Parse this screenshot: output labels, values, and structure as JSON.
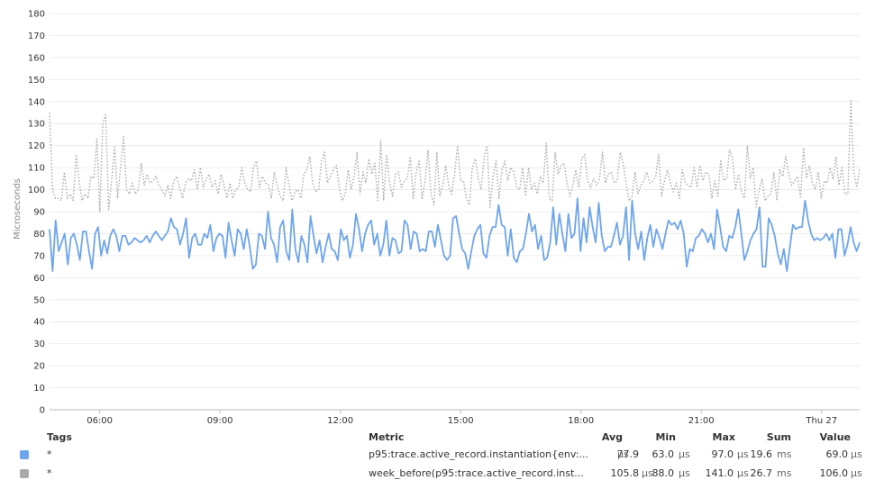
{
  "chart_data": {
    "type": "line",
    "ylabel": "Microseconds",
    "ylim": [
      0,
      180
    ],
    "yticks": [
      0,
      10,
      20,
      30,
      40,
      50,
      60,
      70,
      80,
      90,
      100,
      110,
      120,
      130,
      140,
      150,
      160,
      170,
      180
    ],
    "xtick_labels": [
      "06:00",
      "09:00",
      "12:00",
      "15:00",
      "18:00",
      "21:00",
      "Thu 27"
    ],
    "xtick_hours": [
      6,
      9,
      12,
      15,
      18,
      21,
      24
    ],
    "x_range_hours": [
      4.75,
      24.95
    ],
    "grid": true,
    "series": [
      {
        "name": "p95:trace.active_record.instantiation{env:...",
        "color": "#6ea5ec",
        "style": "solid",
        "values": [
          82,
          63,
          86,
          72,
          76,
          80,
          66,
          78,
          80,
          75,
          68,
          81,
          81,
          72,
          64,
          80,
          83,
          70,
          77,
          71,
          79,
          82,
          79,
          72,
          79,
          79,
          75,
          76,
          78,
          77,
          76,
          77,
          79,
          76,
          79,
          81,
          79,
          77,
          79,
          81,
          87,
          83,
          82,
          75,
          80,
          87,
          69,
          78,
          80,
          75,
          75,
          80,
          78,
          84,
          72,
          78,
          80,
          79,
          69,
          85,
          77,
          70,
          82,
          80,
          73,
          82,
          74,
          64,
          66,
          80,
          79,
          73,
          90,
          78,
          75,
          67,
          83,
          86,
          72,
          68,
          91,
          73,
          67,
          79,
          75,
          67,
          88,
          79,
          71,
          77,
          67,
          74,
          80,
          73,
          72,
          68,
          82,
          77,
          79,
          69,
          75,
          89,
          82,
          72,
          80,
          84,
          86,
          75,
          80,
          70,
          75,
          86,
          70,
          78,
          77,
          71,
          72,
          86,
          84,
          73,
          81,
          80,
          72,
          73,
          72,
          81,
          81,
          74,
          84,
          77,
          70,
          68,
          70,
          87,
          88,
          80,
          73,
          71,
          64,
          72,
          79,
          82,
          84,
          71,
          69,
          79,
          83,
          83,
          93,
          84,
          83,
          70,
          82,
          69,
          67,
          72,
          73,
          80,
          89,
          81,
          84,
          73,
          79,
          68,
          69,
          76,
          92,
          75,
          89,
          80,
          72,
          89,
          78,
          80,
          96,
          72,
          87,
          76,
          92,
          83,
          76,
          94,
          79,
          72,
          74,
          74,
          79,
          85,
          75,
          79,
          92,
          68,
          95,
          80,
          73,
          81,
          68,
          78,
          84,
          74,
          82,
          78,
          73,
          80,
          86,
          84,
          85,
          82,
          86,
          80,
          65,
          73,
          72,
          78,
          79,
          82,
          80,
          76,
          80,
          73,
          91,
          83,
          74,
          72,
          79,
          78,
          83,
          91,
          80,
          68,
          72,
          77,
          80,
          82,
          92,
          65,
          65,
          87,
          84,
          79,
          71,
          66,
          73,
          63,
          74,
          84,
          82,
          83,
          83,
          95,
          86,
          80,
          77,
          78,
          77,
          78,
          80,
          77,
          80,
          69,
          82,
          82,
          70,
          75,
          83,
          76,
          72,
          76
        ],
        "avg": "77.9",
        "min": "63.0",
        "max": "97.0",
        "sum": "19.6",
        "value": "69.0",
        "avg_unit": "μs",
        "min_unit": "μs",
        "max_unit": "μs",
        "sum_unit": "ms",
        "value_unit": "μs"
      },
      {
        "name": "week_before(p95:trace.active_record.inst...",
        "color": "#aaaaaa",
        "style": "dotted",
        "values": [
          135,
          100,
          96,
          96,
          95,
          108,
          96,
          98,
          95,
          116,
          104,
          95,
          98,
          96,
          106,
          105,
          123,
          90,
          130,
          134,
          91,
          104,
          120,
          96,
          110,
          124,
          100,
          98,
          103,
          98,
          100,
          112,
          102,
          107,
          103,
          104,
          106,
          102,
          100,
          97,
          102,
          96,
          104,
          106,
          101,
          96,
          103,
          105,
          104,
          109,
          100,
          110,
          101,
          105,
          107,
          101,
          104,
          98,
          107,
          102,
          96,
          103,
          96,
          100,
          101,
          110,
          103,
          100,
          99,
          110,
          113,
          101,
          106,
          103,
          102,
          96,
          108,
          102,
          97,
          95,
          110,
          102,
          95,
          99,
          100,
          96,
          107,
          109,
          115,
          103,
          99,
          100,
          113,
          117,
          103,
          106,
          109,
          111,
          101,
          95,
          98,
          109,
          100,
          106,
          117,
          98,
          108,
          103,
          114,
          107,
          112,
          95,
          122,
          95,
          116,
          103,
          97,
          107,
          108,
          101,
          104,
          105,
          115,
          96,
          108,
          113,
          96,
          104,
          118,
          98,
          93,
          117,
          97,
          102,
          111,
          102,
          98,
          107,
          120,
          104,
          104,
          96,
          93,
          110,
          114,
          105,
          100,
          115,
          120,
          92,
          106,
          113,
          96,
          109,
          113,
          104,
          110,
          108,
          101,
          100,
          110,
          97,
          110,
          100,
          103,
          98,
          106,
          103,
          121,
          96,
          95,
          117,
          107,
          111,
          112,
          103,
          97,
          102,
          109,
          101,
          114,
          116,
          104,
          101,
          105,
          102,
          105,
          117,
          103,
          107,
          108,
          103,
          104,
          117,
          112,
          103,
          95,
          97,
          108,
          98,
          102,
          104,
          108,
          103,
          104,
          106,
          116,
          97,
          104,
          109,
          103,
          99,
          103,
          96,
          109,
          103,
          102,
          101,
          110,
          101,
          111,
          104,
          108,
          107,
          96,
          104,
          97,
          113,
          104,
          105,
          118,
          114,
          100,
          107,
          99,
          96,
          120,
          105,
          110,
          92,
          100,
          105,
          95,
          97,
          98,
          108,
          95,
          109,
          106,
          115,
          107,
          102,
          104,
          106,
          96,
          119,
          105,
          111,
          103,
          100,
          108,
          96,
          104,
          103,
          110,
          105,
          115,
          102,
          110,
          98,
          98,
          141,
          108,
          101,
          110
        ],
        "avg": "105.8",
        "min": "88.0",
        "max": "141.0",
        "sum": "26.7",
        "value": "106.0",
        "avg_unit": "μs",
        "min_unit": "μs",
        "max_unit": "μs",
        "sum_unit": "ms",
        "value_unit": "μs"
      }
    ]
  },
  "legend": {
    "headers": {
      "tags": "Tags",
      "metric": "Metric",
      "avg": "Avg",
      "min": "Min",
      "max": "Max",
      "sum": "Sum",
      "value": "Value"
    },
    "rows": [
      {
        "tags": "*",
        "metric": "p95:trace.active_record.instantiation{env:...",
        "color": "#6ea5ec"
      },
      {
        "tags": "*",
        "metric": "week_before(p95:trace.active_record.inst...",
        "color": "#aaaaaa"
      }
    ]
  }
}
